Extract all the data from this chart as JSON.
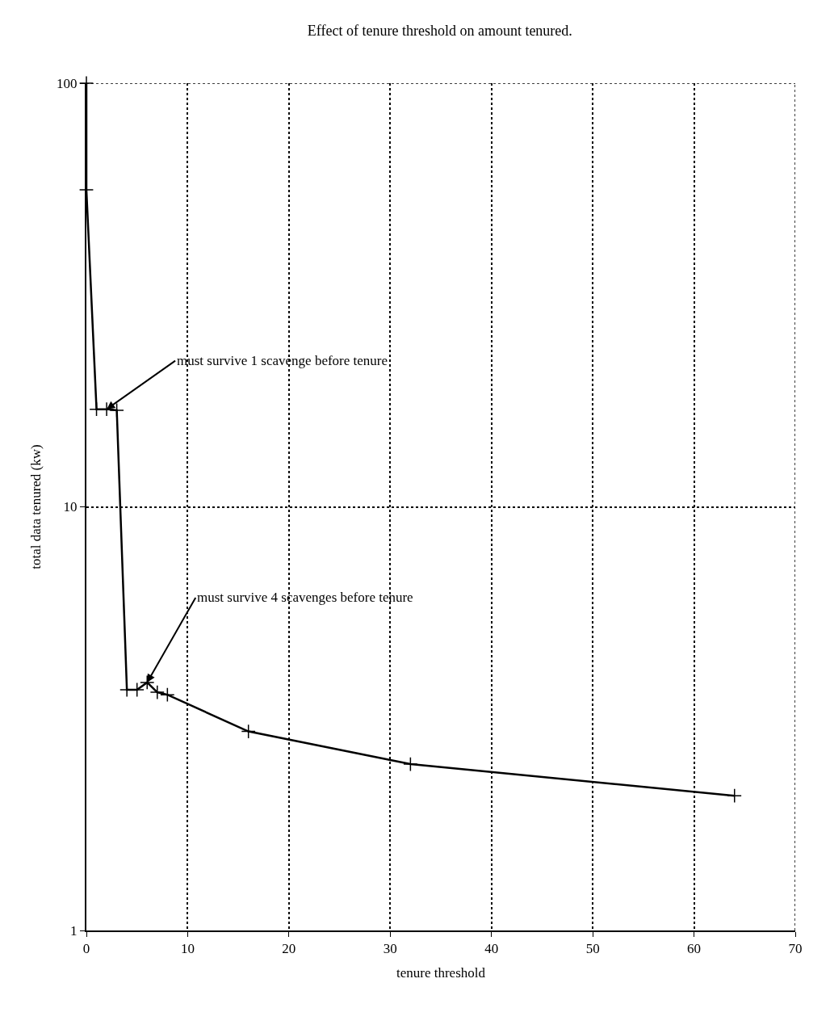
{
  "chart_data": {
    "type": "line",
    "title": "Effect of tenure threshold on amount tenured.",
    "xlabel": "tenure threshold",
    "ylabel": "total data tenured (kw)",
    "x": [
      0,
      0,
      1,
      2,
      3,
      4,
      5,
      6,
      7,
      8,
      16,
      32,
      64
    ],
    "series": [
      {
        "color": "#000000",
        "values": [
          100,
          56,
          17,
          17,
          16.9,
          3.7,
          3.7,
          3.85,
          3.65,
          3.6,
          2.95,
          2.47,
          2.08
        ]
      }
    ],
    "annotations": [
      {
        "text": "must survive 1 scavenge before tenure",
        "x": 2,
        "y": 17
      },
      {
        "text": "must survive 4 scavenges before tenure",
        "x": 6,
        "y": 3.85
      }
    ],
    "xlim": [
      0,
      70
    ],
    "xticks": [
      0,
      10,
      20,
      30,
      40,
      50,
      60,
      70
    ],
    "ylim": [
      1,
      100
    ],
    "yticks": [
      1,
      10,
      100
    ],
    "log": "y",
    "grid": true,
    "marker": "cross",
    "line_style": "solid"
  }
}
